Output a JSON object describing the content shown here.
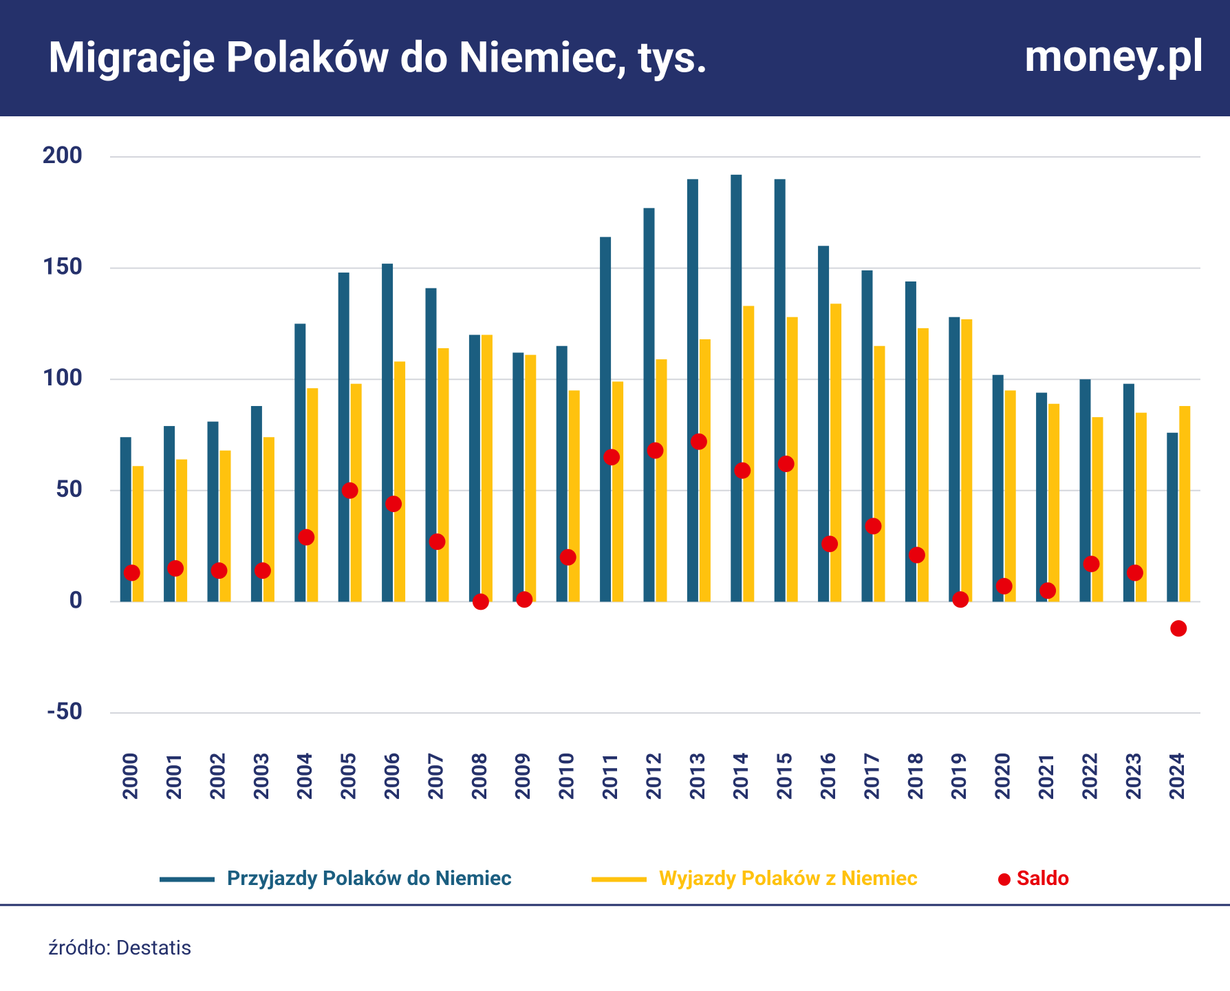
{
  "header": {
    "title": "Migracje Polaków do Niemiec, tys.",
    "logo": "money.pl"
  },
  "chart_data": {
    "type": "bar",
    "categories": [
      "2000",
      "2001",
      "2002",
      "2003",
      "2004",
      "2005",
      "2006",
      "2007",
      "2008",
      "2009",
      "2010",
      "2011",
      "2012",
      "2013",
      "2014",
      "2015",
      "2016",
      "2017",
      "2018",
      "2019",
      "2020",
      "2021",
      "2022",
      "2023",
      "2024"
    ],
    "series": [
      {
        "name": "Przyjazdy Polaków do Niemiec",
        "color": "#1b5e80",
        "values": [
          74,
          79,
          81,
          88,
          125,
          148,
          152,
          141,
          120,
          112,
          115,
          164,
          177,
          190,
          192,
          190,
          160,
          149,
          144,
          128,
          102,
          94,
          100,
          98,
          76
        ]
      },
      {
        "name": "Wyjazdy Polaków z Niemiec",
        "color": "#ffc20e",
        "values": [
          61,
          64,
          68,
          74,
          96,
          98,
          108,
          114,
          120,
          111,
          95,
          99,
          109,
          118,
          133,
          128,
          134,
          115,
          123,
          127,
          95,
          89,
          83,
          85,
          88
        ]
      },
      {
        "name": "Saldo",
        "color": "#e8000b",
        "type": "scatter",
        "values": [
          13,
          15,
          14,
          14,
          29,
          50,
          44,
          27,
          0,
          1,
          20,
          65,
          68,
          72,
          59,
          62,
          26,
          34,
          21,
          1,
          7,
          5,
          17,
          13,
          -12
        ]
      }
    ],
    "ylim": [
      -50,
      200
    ],
    "yticks": [
      -50,
      0,
      50,
      100,
      150,
      200
    ],
    "grid": true
  },
  "footer": {
    "source": "źródło: Destatis"
  }
}
